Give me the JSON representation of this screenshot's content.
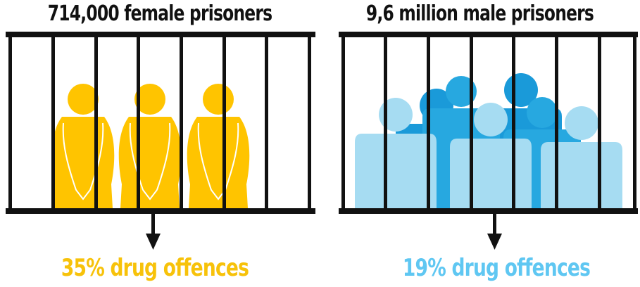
{
  "colors": {
    "female": "#ffc400",
    "female_line": "#ffffff",
    "male_dark": "#1a9ad9",
    "male_mid": "#27a8e0",
    "male_light": "#a6dcf2",
    "bars": "#111111",
    "female_caption": "#f7c20a",
    "male_caption": "#5fc7f2"
  },
  "female_panel": {
    "title": "714,000 female prisoners",
    "caption": "35% drug offences",
    "icon": "female-figure-icon",
    "share_percent": 35
  },
  "male_panel": {
    "title": "9,6 million male prisoners",
    "caption": "19% drug offences",
    "icon": "male-figure-icon",
    "share_percent": 19
  }
}
